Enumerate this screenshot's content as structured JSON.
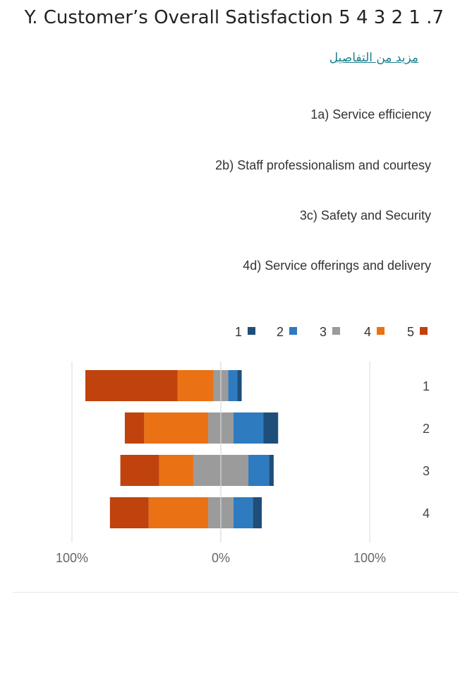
{
  "question": {
    "title": "Y. Customer’s Overall Satisfaction 5 4 3 2 1  .7",
    "more_details_link": "مزيد من التفاصيل",
    "items": [
      "1a) Service efficiency",
      "2b) Staff professionalism and courtesy",
      "3c) Safety and Security",
      "4d) Service offerings and delivery"
    ]
  },
  "chart_data": {
    "type": "bar",
    "orientation": "horizontal-diverging-stacked",
    "title": "",
    "categories": [
      "1",
      "2",
      "3",
      "4"
    ],
    "xlim": [
      -100,
      100
    ],
    "x_ticks": [
      "100%",
      "0%",
      "100%"
    ],
    "legend_position": "top-right",
    "legend_labels": [
      "1",
      "2",
      "3",
      "4",
      "5"
    ],
    "series": [
      {
        "name": "1",
        "color": "#1f4e79",
        "values": [
          3,
          10,
          3,
          6
        ]
      },
      {
        "name": "2",
        "color": "#2e7bbf",
        "values": [
          6,
          20,
          14,
          13
        ]
      },
      {
        "name": "3",
        "color": "#9b9b9b",
        "values": [
          10,
          17,
          37,
          17
        ]
      },
      {
        "name": "4",
        "color": "#ea7114",
        "values": [
          24,
          43,
          23,
          40
        ]
      },
      {
        "name": "5",
        "color": "#c0420c",
        "values": [
          62,
          13,
          26,
          26
        ]
      }
    ],
    "neutral_series": "3",
    "negative_series": [
      "4",
      "5"
    ],
    "positive_series": [
      "1",
      "2"
    ]
  }
}
